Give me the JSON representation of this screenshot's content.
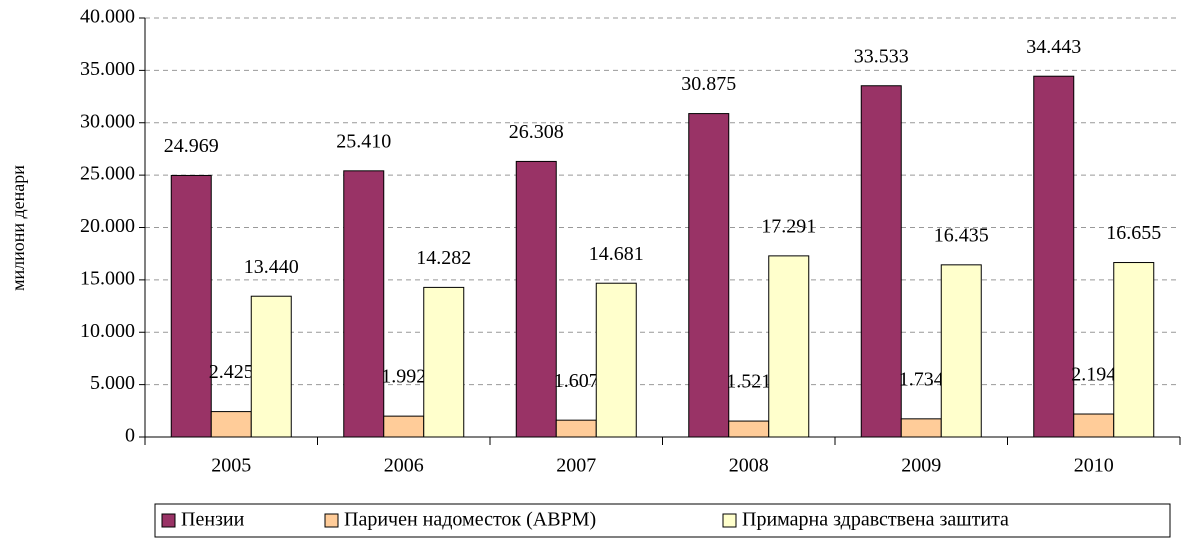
{
  "chart_data": {
    "type": "bar",
    "y_axis_label": "милиони денари",
    "categories": [
      "2005",
      "2006",
      "2007",
      "2008",
      "2009",
      "2010"
    ],
    "series": [
      {
        "name": "Пензии",
        "color": "#993366",
        "values": [
          24969,
          25410,
          26308,
          30875,
          33533,
          34443
        ],
        "value_labels": [
          "24.969",
          "25.410",
          "26.308",
          "30.875",
          "33.533",
          "34.443"
        ]
      },
      {
        "name": "Паричен надоместок (АВРМ)",
        "color": "#ffcc99",
        "values": [
          2425,
          1992,
          1607,
          1521,
          1734,
          2194
        ],
        "value_labels": [
          "2.425",
          "1.992",
          "1.607",
          "1.521",
          "1.734",
          "2.194"
        ]
      },
      {
        "name": "Примарна здравствена заштита",
        "color": "#ffffcc",
        "values": [
          13440,
          14282,
          14681,
          17291,
          16435,
          16655
        ],
        "value_labels": [
          "13.440",
          "14.282",
          "14.681",
          "17.291",
          "16.435",
          "16.655"
        ]
      }
    ],
    "ylim": [
      0,
      40000
    ],
    "yticks": [
      0,
      {
        "value": 5000,
        "label": "5.000"
      },
      {
        "value": 10000,
        "label": "10.000"
      },
      {
        "value": 15000,
        "label": "15.000"
      },
      {
        "value": 20000,
        "label": "20.000"
      },
      {
        "value": 25000,
        "label": "25.000"
      },
      {
        "value": 30000,
        "label": "30.000"
      },
      {
        "value": 35000,
        "label": "35.000"
      },
      {
        "value": 40000,
        "label": "40.000"
      }
    ],
    "grid": true,
    "legend": "bottom"
  }
}
